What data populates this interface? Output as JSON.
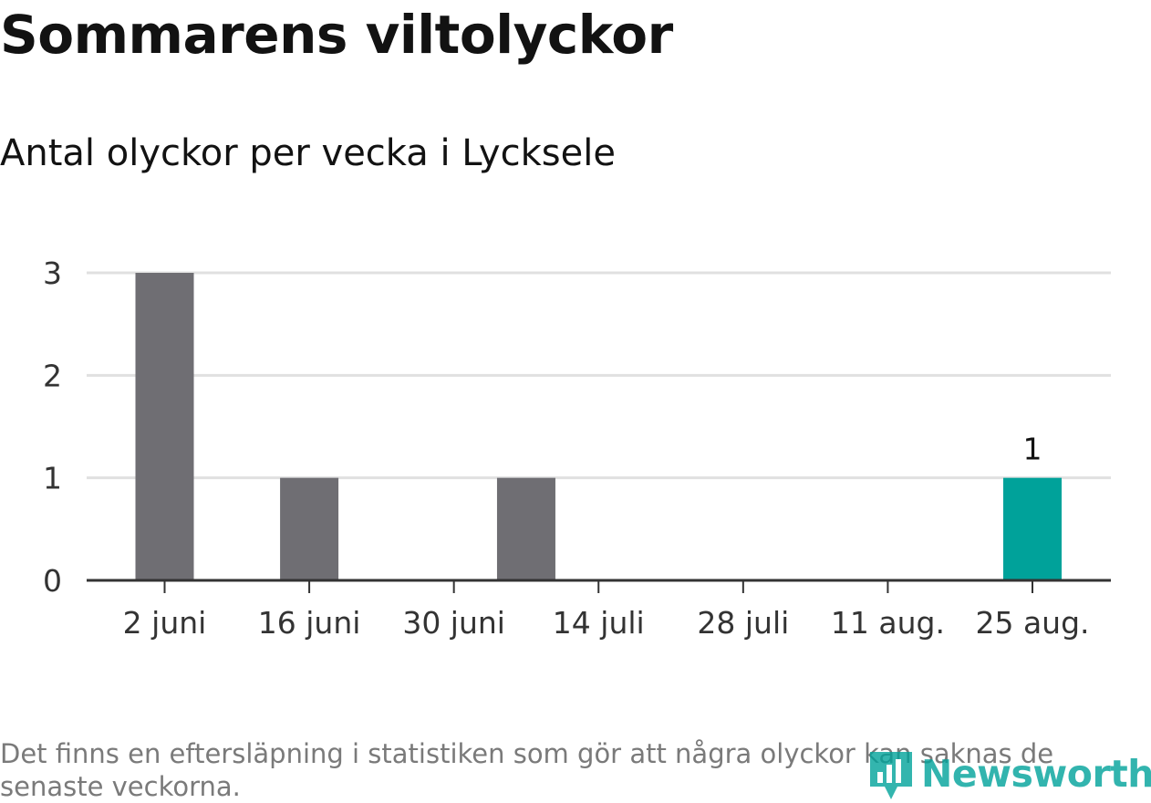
{
  "title": "Sommarens viltolyckor",
  "subtitle": "Antal olyckor per vecka i Lycksele",
  "footnote": "Det finns en eftersläpning i statistiken som gör att några olyckor kan saknas de senaste veckorna.",
  "logo": {
    "text": "Newsworthy",
    "icon": "bar-chart-pin-icon"
  },
  "colors": {
    "bar": "#6f6e73",
    "highlight": "#00a29a",
    "grid": "#e0e0e0",
    "axis": "#333333",
    "text": "#333333",
    "logo": "#00a29a"
  },
  "chart_data": {
    "type": "bar",
    "x": [
      "2019-06-02",
      "2019-06-09",
      "2019-06-16",
      "2019-06-23",
      "2019-06-30",
      "2019-07-07",
      "2019-07-14",
      "2019-07-21",
      "2019-07-28",
      "2019-08-04",
      "2019-08-11",
      "2019-08-18",
      "2019-08-25"
    ],
    "values": [
      3,
      0,
      1,
      0,
      0,
      1,
      0,
      0,
      0,
      0,
      0,
      0,
      1
    ],
    "tick_labels": [
      "2 juni",
      "16 juni",
      "30 juni",
      "14 juli",
      "28 juli",
      "11 aug.",
      "25 aug."
    ],
    "y_ticks": [
      "0",
      "1",
      "2",
      "3"
    ],
    "ylim": [
      0,
      3
    ],
    "highlight": {
      "index": 12,
      "label": "1"
    },
    "grid": true,
    "legend": "none"
  }
}
